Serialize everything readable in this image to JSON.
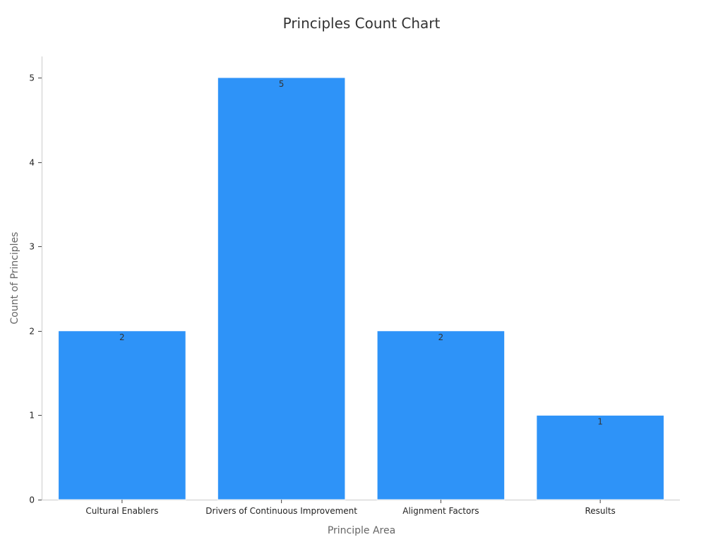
{
  "chart_data": {
    "type": "bar",
    "title": "Principles Count Chart",
    "xlabel": "Principle Area",
    "ylabel": "Count of Principles",
    "categories": [
      "Cultural Enablers",
      "Drivers of Continuous Improvement",
      "Alignment Factors",
      "Results"
    ],
    "values": [
      2,
      5,
      2,
      1
    ],
    "data_labels": [
      "2",
      "5",
      "2",
      "1"
    ],
    "ylim": [
      0,
      5.25
    ],
    "yticks": [
      0,
      1,
      2,
      3,
      4,
      5
    ],
    "ytick_labels": [
      "0",
      "1",
      "2",
      "3",
      "4",
      "5"
    ],
    "grid": false,
    "legend": "none",
    "bar_color": "#2e93f8"
  }
}
